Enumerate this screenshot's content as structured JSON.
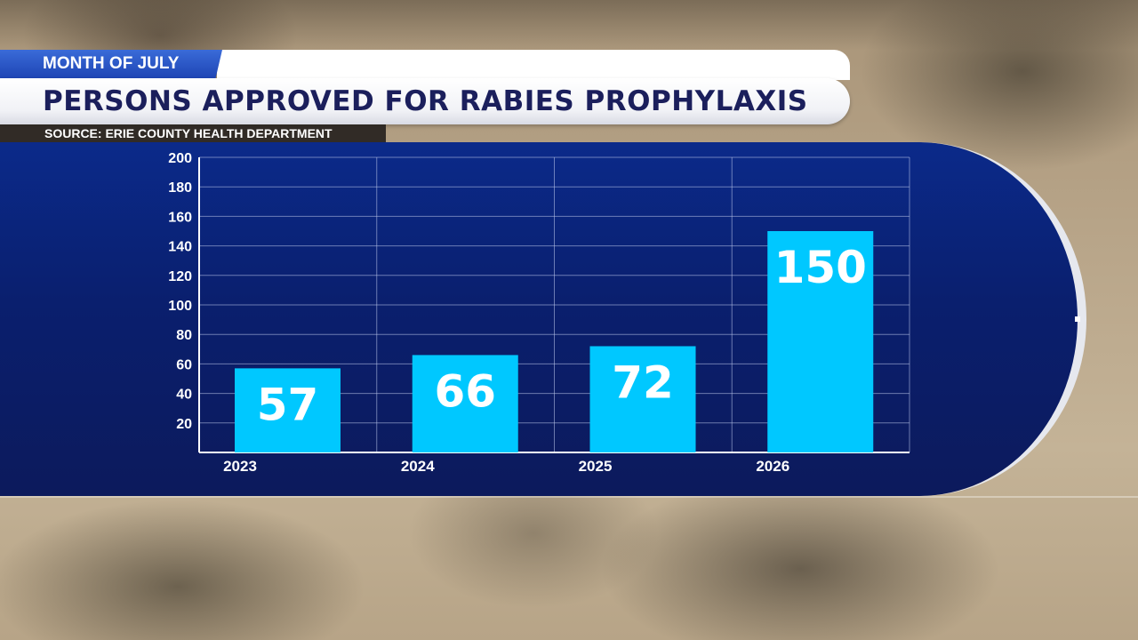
{
  "header": {
    "tag": "MONTH OF JULY",
    "title": "PERSONS APPROVED FOR RABIES PROPHYLAXIS",
    "source": "SOURCE: ERIE COUNTY HEALTH DEPARTMENT"
  },
  "colors": {
    "bar": "#00c8ff",
    "panel": "#0b2a8a",
    "title_text": "#1b1f5c",
    "tag_blue": "#2a55c8"
  },
  "chart_data": {
    "type": "bar",
    "categories": [
      "2023",
      "2024",
      "2025",
      "2026"
    ],
    "values": [
      57,
      66,
      72,
      150
    ],
    "data_labels": [
      "57",
      "66",
      "72",
      "150"
    ],
    "ylim": [
      0,
      200
    ],
    "yticks": [
      20,
      40,
      60,
      80,
      100,
      120,
      140,
      160,
      180,
      200
    ],
    "grid": true,
    "title": "PERSONS APPROVED FOR RABIES PROPHYLAXIS",
    "xlabel": "",
    "ylabel": ""
  }
}
